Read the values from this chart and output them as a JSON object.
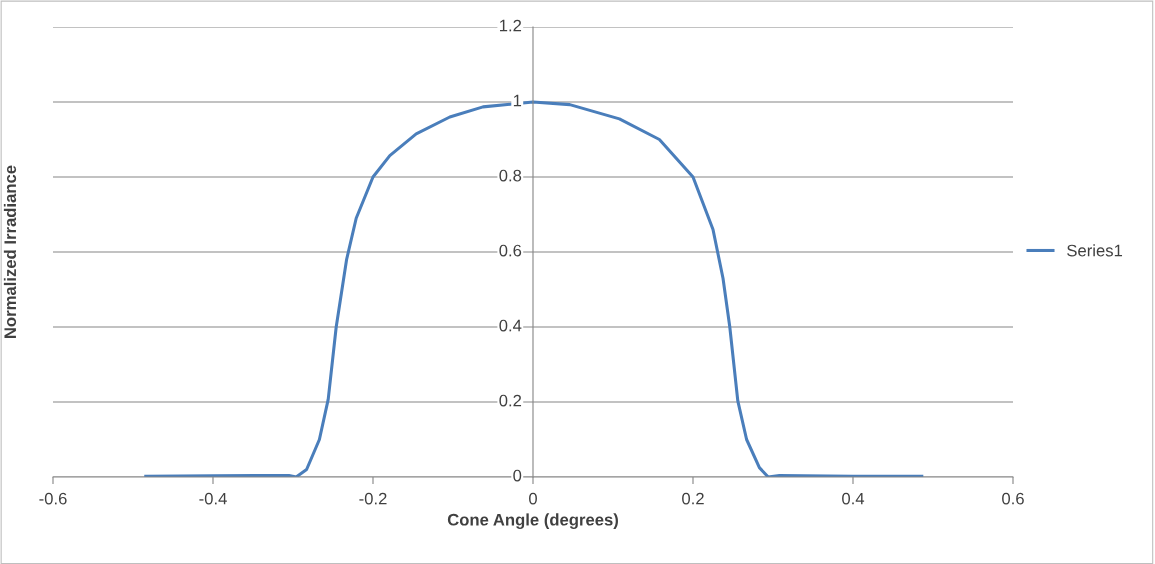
{
  "chart_data": {
    "type": "line",
    "xlabel": "Cone Angle (degrees)",
    "ylabel": "Normalized Irradiance",
    "xlim": [
      -0.6,
      0.6
    ],
    "xticks": [
      -0.6,
      -0.4,
      -0.2,
      0,
      0.2,
      0.4,
      0.6
    ],
    "ylim": [
      0,
      1.2
    ],
    "yticks": [
      0,
      0.2,
      0.4,
      0.6,
      0.8,
      1,
      1.2
    ],
    "grid": "y",
    "legend": "right",
    "marker": "none",
    "line_style": "solid",
    "series": [
      {
        "name": "Series1",
        "color": "#4a7ebb",
        "x": [
          -0.484,
          -0.4,
          -0.33,
          -0.305,
          -0.296,
          -0.283,
          -0.267,
          -0.256,
          -0.246,
          -0.233,
          -0.221,
          -0.2,
          -0.179,
          -0.146,
          -0.104,
          -0.0625,
          0,
          0.046,
          0.108,
          0.158,
          0.2,
          0.225,
          0.2375,
          0.246,
          0.256,
          0.267,
          0.283,
          0.294,
          0.308,
          0.4,
          0.486
        ],
        "values": [
          0.002,
          0.003,
          0.004,
          0.004,
          0,
          0.02,
          0.1,
          0.207,
          0.4,
          0.58,
          0.69,
          0.8,
          0.857,
          0.915,
          0.96,
          0.987,
          1.0,
          0.993,
          0.955,
          0.9,
          0.8,
          0.66,
          0.53,
          0.4,
          0.203,
          0.1,
          0.025,
          0,
          0.004,
          0.002,
          0.002
        ]
      }
    ]
  }
}
